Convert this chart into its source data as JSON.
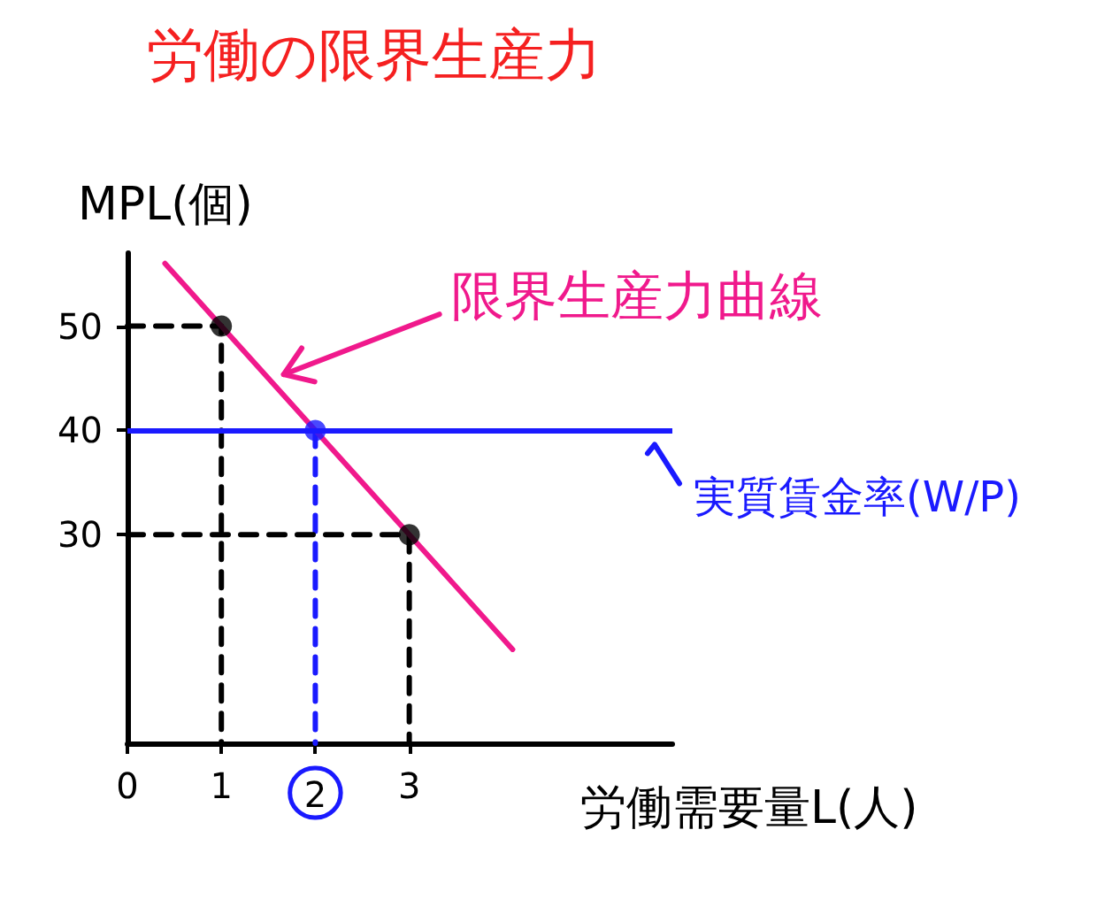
{
  "chart_data": {
    "type": "line",
    "title": "労働の限界生産力",
    "xlabel": "労働需要量L(人)",
    "ylabel": "MPL(個)",
    "xlim": [
      0,
      5.8
    ],
    "xticks": [
      0,
      1,
      2,
      3
    ],
    "ylim": [
      10,
      57
    ],
    "yticks": [
      30,
      40,
      50
    ],
    "grid": false,
    "marker": "none",
    "series": [
      {
        "name": "限界生産力曲線",
        "color": "#f0198c",
        "x": [
          0.4,
          4.1
        ],
        "values": [
          56,
          19
        ]
      },
      {
        "color": "#000000",
        "x": [
          0,
          1,
          1
        ],
        "values": [
          50,
          50,
          10
        ],
        "line_style": "dashed"
      },
      {
        "color": "#1a1aff",
        "x": [
          2,
          2
        ],
        "values": [
          40,
          10
        ],
        "line_style": "dashed"
      },
      {
        "color": "#000000",
        "x": [
          0,
          3,
          3
        ],
        "values": [
          30,
          30,
          10
        ],
        "line_style": "dashed"
      },
      {
        "type": "scatter",
        "color": "#000000",
        "x": [
          1,
          2,
          3
        ],
        "values": [
          50,
          40,
          30
        ],
        "colors": [
          "#000000",
          "#1a1aff",
          "#000000"
        ],
        "marker": "circle"
      }
    ],
    "ref_lines": [
      {
        "axis": "y",
        "value": 40,
        "label": "実質賃金率(W/P)",
        "color": "#1a1aff"
      }
    ]
  }
}
